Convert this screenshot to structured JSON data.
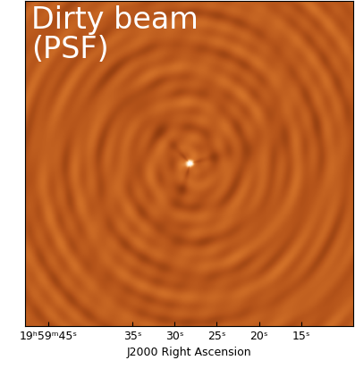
{
  "chart_data": {
    "type": "image",
    "title": "Dirty beam\n(PSF)",
    "xlabel": "J2000 Right Ascension",
    "xlim": [
      47.8,
      8.8
    ],
    "xticks": [
      {
        "value": 45,
        "label": "19ʰ59ᵐ45ˢ"
      },
      {
        "value": 35,
        "label": "35ˢ"
      },
      {
        "value": 30,
        "label": "30ˢ"
      },
      {
        "value": 25,
        "label": "25ˢ"
      },
      {
        "value": 20,
        "label": "20ˢ"
      },
      {
        "value": 15,
        "label": "15ˢ"
      }
    ],
    "tick_labels": "x"
  }
}
